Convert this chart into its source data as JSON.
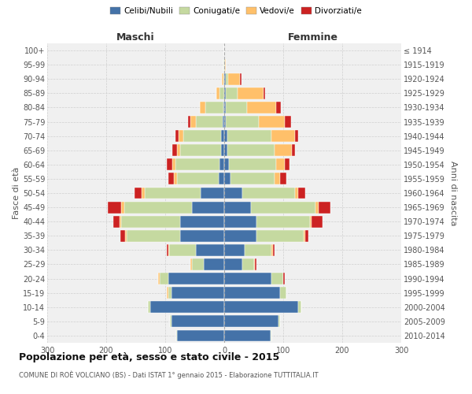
{
  "age_groups": [
    "0-4",
    "5-9",
    "10-14",
    "15-19",
    "20-24",
    "25-29",
    "30-34",
    "35-39",
    "40-44",
    "45-49",
    "50-54",
    "55-59",
    "60-64",
    "65-69",
    "70-74",
    "75-79",
    "80-84",
    "85-89",
    "90-94",
    "95-99",
    "100+"
  ],
  "birth_years": [
    "2010-2014",
    "2005-2009",
    "2000-2004",
    "1995-1999",
    "1990-1994",
    "1985-1989",
    "1980-1984",
    "1975-1979",
    "1970-1974",
    "1965-1969",
    "1960-1964",
    "1955-1959",
    "1950-1954",
    "1945-1949",
    "1940-1944",
    "1935-1939",
    "1930-1934",
    "1925-1929",
    "1920-1924",
    "1915-1919",
    "≤ 1914"
  ],
  "males": {
    "celibi": [
      80,
      90,
      125,
      90,
      95,
      35,
      48,
      75,
      75,
      55,
      40,
      10,
      8,
      5,
      5,
      3,
      2,
      0,
      0,
      0,
      0
    ],
    "coniugati": [
      2,
      2,
      5,
      5,
      15,
      20,
      45,
      90,
      100,
      115,
      95,
      70,
      75,
      70,
      65,
      45,
      30,
      8,
      2,
      1,
      0
    ],
    "vedovi": [
      0,
      0,
      0,
      2,
      2,
      2,
      2,
      3,
      3,
      5,
      5,
      5,
      5,
      5,
      8,
      10,
      10,
      5,
      2,
      0,
      0
    ],
    "divorziati": [
      0,
      0,
      0,
      0,
      0,
      0,
      3,
      8,
      10,
      22,
      12,
      10,
      10,
      8,
      5,
      3,
      0,
      0,
      0,
      0,
      0
    ]
  },
  "females": {
    "nubili": [
      78,
      92,
      125,
      95,
      80,
      30,
      35,
      55,
      55,
      45,
      30,
      10,
      8,
      5,
      5,
      3,
      3,
      2,
      2,
      0,
      0
    ],
    "coniugate": [
      2,
      2,
      5,
      10,
      20,
      20,
      45,
      80,
      90,
      110,
      90,
      75,
      80,
      80,
      75,
      55,
      35,
      20,
      5,
      1,
      0
    ],
    "vedove": [
      0,
      0,
      0,
      0,
      0,
      2,
      2,
      2,
      3,
      5,
      5,
      10,
      15,
      30,
      40,
      45,
      50,
      45,
      20,
      2,
      0
    ],
    "divorziate": [
      0,
      0,
      0,
      0,
      2,
      2,
      3,
      5,
      18,
      20,
      12,
      10,
      8,
      5,
      5,
      10,
      8,
      2,
      2,
      0,
      0
    ]
  },
  "colors": {
    "celibi": "#4472a8",
    "coniugati": "#c5d9a0",
    "vedovi": "#ffc06a",
    "divorziati": "#cc2222"
  },
  "xlim": 300,
  "title": "Popolazione per età, sesso e stato civile - 2015",
  "subtitle": "COMUNE DI ROÈ VOLCIANO (BS) - Dati ISTAT 1° gennaio 2015 - Elaborazione TUTTITALIA.IT",
  "ylabel_left": "Fasce di età",
  "ylabel_right": "Anni di nascita",
  "legend_labels": [
    "Celibi/Nubili",
    "Coniugati/e",
    "Vedovi/e",
    "Divorziati/e"
  ],
  "maschi_label": "Maschi",
  "femmine_label": "Femmine",
  "bg_color": "#f0f0f0",
  "grid_color": "#cccccc"
}
